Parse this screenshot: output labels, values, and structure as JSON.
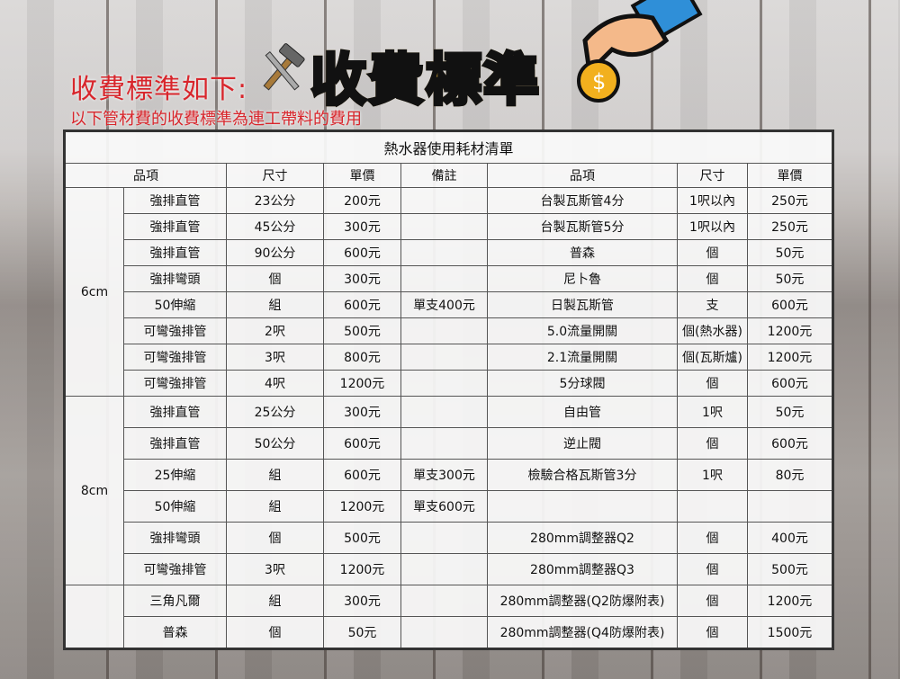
{
  "header": {
    "heading": "收費標準如下:",
    "subheading": "以下管材費的收費標準為連工帶料的費用",
    "logo_text": "收費標準"
  },
  "table": {
    "title": "熱水器使用耗材清單",
    "columns": [
      "品項",
      "尺寸",
      "單價",
      "備註",
      "品項",
      "尺寸",
      "單價"
    ],
    "groups": [
      {
        "label": "6cm",
        "rows": [
          [
            "強排直管",
            "23公分",
            "200元",
            "",
            "台製瓦斯管4分",
            "1呎以內",
            "250元"
          ],
          [
            "強排直管",
            "45公分",
            "300元",
            "",
            "台製瓦斯管5分",
            "1呎以內",
            "250元"
          ],
          [
            "強排直管",
            "90公分",
            "600元",
            "",
            "普森",
            "個",
            "50元"
          ],
          [
            "強排彎頭",
            "個",
            "300元",
            "",
            "尼卜魯",
            "個",
            "50元"
          ],
          [
            "50伸縮",
            "組",
            "600元",
            "單支400元",
            "日製瓦斯管",
            "支",
            "600元"
          ],
          [
            "可彎強排管",
            "2呎",
            "500元",
            "",
            "5.0流量開關",
            "個(熱水器)",
            "1200元"
          ],
          [
            "可彎強排管",
            "3呎",
            "800元",
            "",
            "2.1流量開關",
            "個(瓦斯爐)",
            "1200元"
          ],
          [
            "可彎強排管",
            "4呎",
            "1200元",
            "",
            "5分球閥",
            "個",
            "600元"
          ]
        ]
      },
      {
        "label": "8cm",
        "rows": [
          [
            "強排直管",
            "25公分",
            "300元",
            "",
            "自由管",
            "1呎",
            "50元"
          ],
          [
            "強排直管",
            "50公分",
            "600元",
            "",
            "逆止閥",
            "個",
            "600元"
          ],
          [
            "25伸縮",
            "組",
            "600元",
            "單支300元",
            "檢驗合格瓦斯管3分",
            "1呎",
            "80元"
          ],
          [
            "50伸縮",
            "組",
            "1200元",
            "單支600元",
            "",
            "",
            ""
          ],
          [
            "強排彎頭",
            "個",
            "500元",
            "",
            "280mm調整器Q2",
            "個",
            "400元"
          ],
          [
            "可彎強排管",
            "3呎",
            "1200元",
            "",
            "280mm調整器Q3",
            "個",
            "500元"
          ]
        ]
      },
      {
        "label": "",
        "rows": [
          [
            "三角凡爾",
            "組",
            "300元",
            "",
            "280mm調整器(Q2防爆附表)",
            "個",
            "1200元"
          ],
          [
            "普森",
            "個",
            "50元",
            "",
            "280mm調整器(Q4防爆附表)",
            "個",
            "1500元"
          ]
        ]
      }
    ]
  }
}
